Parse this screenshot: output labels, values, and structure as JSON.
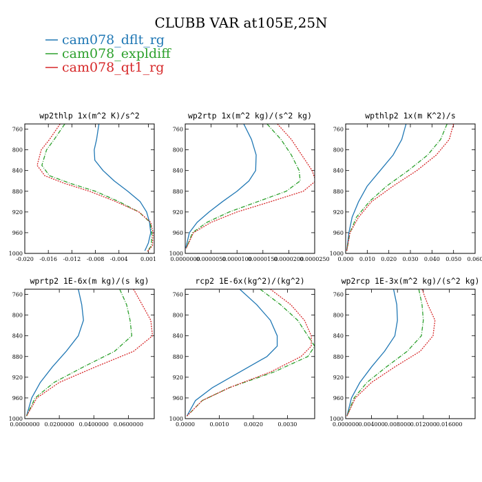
{
  "title": "CLUBB VAR at105E,25N",
  "legend": [
    {
      "name": "cam078_dflt_rg",
      "color": "#1f77b4",
      "dash": ""
    },
    {
      "name": "cam078_expldiff",
      "color": "#2ca02c",
      "dash": "6,2,1,2"
    },
    {
      "name": "cam078_qt1_rg",
      "color": "#d62728",
      "dash": "2,1.5"
    }
  ],
  "chart_data": [
    {
      "type": "line",
      "title": "wp2thlp  1x(m^2 K)/s^2",
      "xlim": [
        -0.02,
        0.002
      ],
      "ylim": [
        1000,
        750
      ],
      "xticks": [
        -0.02,
        -0.016,
        -0.012,
        -0.008,
        -0.004,
        0.001
      ],
      "xtick_labels": [
        "-0.020",
        "-0.016",
        "-0.012",
        "-0.008",
        "-0.004",
        "0.001"
      ],
      "yticks": [
        760,
        800,
        840,
        880,
        920,
        960,
        1000
      ],
      "ytick_labels": [
        "760",
        "800",
        "840",
        "880",
        "920",
        "960",
        "1000"
      ],
      "series": [
        {
          "name": "cam078_dflt_rg",
          "x": [
            -0.0074,
            -0.0078,
            -0.0082,
            -0.0081,
            -0.0067,
            -0.0048,
            -0.0025,
            -0.0004,
            0.0007,
            0.0012,
            0.0014,
            0.001,
            0.0004
          ],
          "y": [
            750,
            780,
            800,
            820,
            840,
            860,
            880,
            900,
            920,
            940,
            960,
            980,
            995
          ]
        },
        {
          "name": "cam078_expldiff",
          "x": [
            -0.0132,
            -0.015,
            -0.0163,
            -0.0171,
            -0.0158,
            -0.0122,
            -0.008,
            -0.004,
            -0.0006,
            0.0013,
            0.0016,
            0.0015,
            0.0008
          ],
          "y": [
            750,
            780,
            800,
            830,
            850,
            865,
            880,
            900,
            920,
            940,
            960,
            985,
            997
          ]
        },
        {
          "name": "cam078_qt1_rg",
          "x": [
            -0.014,
            -0.0158,
            -0.0172,
            -0.0179,
            -0.0166,
            -0.0132,
            -0.009,
            -0.0045,
            -0.0006,
            0.0014,
            0.0018,
            0.0017,
            0.0008
          ],
          "y": [
            750,
            780,
            800,
            830,
            850,
            865,
            880,
            900,
            920,
            940,
            960,
            985,
            997
          ]
        }
      ]
    },
    {
      "type": "line",
      "title": "wp2rtp  1x(m^2 kg)/(s^2 kg)",
      "xlim": [
        0,
        2.5e-05
      ],
      "ylim": [
        1000,
        750
      ],
      "xticks": [
        0,
        5e-06,
        1e-05,
        1.5e-05,
        2e-05,
        2.5e-05
      ],
      "xtick_labels": [
        "0.0000000",
        "0.0000050",
        "0.0000100",
        "0.0000150",
        "0.0000200",
        "0.0000250"
      ],
      "yticks": [
        760,
        800,
        840,
        880,
        920,
        960,
        1000
      ],
      "ytick_labels": [
        "760",
        "800",
        "840",
        "880",
        "920",
        "960",
        "1000"
      ],
      "series": [
        {
          "name": "cam078_dflt_rg",
          "x": [
            1.13e-05,
            1.28e-05,
            1.37e-05,
            1.36e-05,
            1.23e-05,
            1e-05,
            7.2e-06,
            4.6e-06,
            2.3e-06,
            8e-07,
            1e-07
          ],
          "y": [
            750,
            780,
            810,
            840,
            860,
            880,
            900,
            920,
            940,
            960,
            990
          ]
        },
        {
          "name": "cam078_expldiff",
          "x": [
            1.58e-05,
            1.85e-05,
            2.05e-05,
            2.2e-05,
            2.22e-05,
            1.95e-05,
            1.4e-05,
            8.5e-06,
            4.2e-06,
            1.4e-06,
            2e-07
          ],
          "y": [
            750,
            780,
            810,
            840,
            860,
            880,
            900,
            920,
            940,
            960,
            990
          ]
        },
        {
          "name": "cam078_qt1_rg",
          "x": [
            1.78e-05,
            2.05e-05,
            2.25e-05,
            2.45e-05,
            2.52e-05,
            2.28e-05,
            1.65e-05,
            1e-05,
            5e-06,
            1.6e-06,
            2e-07
          ],
          "y": [
            750,
            780,
            810,
            840,
            860,
            880,
            900,
            920,
            940,
            960,
            990
          ]
        }
      ]
    },
    {
      "type": "line",
      "title": "wpthlp2  1x(m K^2)/s",
      "xlim": [
        0,
        0.06
      ],
      "ylim": [
        1000,
        750
      ],
      "xticks": [
        0,
        0.01,
        0.02,
        0.03,
        0.04,
        0.05,
        0.06
      ],
      "xtick_labels": [
        "0.000",
        "0.010",
        "0.020",
        "0.030",
        "0.040",
        "0.050",
        "0.060"
      ],
      "yticks": [
        760,
        800,
        840,
        880,
        920,
        960,
        1000
      ],
      "ytick_labels": [
        "760",
        "800",
        "840",
        "880",
        "920",
        "960",
        "1000"
      ],
      "series": [
        {
          "name": "cam078_dflt_rg",
          "x": [
            0.028,
            0.026,
            0.022,
            0.016,
            0.01,
            0.006,
            0.003,
            0.0015,
            0.0005
          ],
          "y": [
            750,
            780,
            810,
            840,
            870,
            900,
            930,
            960,
            995
          ]
        },
        {
          "name": "cam078_expldiff",
          "x": [
            0.047,
            0.044,
            0.038,
            0.029,
            0.019,
            0.011,
            0.005,
            0.002,
            0.0005
          ],
          "y": [
            750,
            780,
            810,
            840,
            870,
            900,
            930,
            960,
            995
          ]
        },
        {
          "name": "cam078_qt1_rg",
          "x": [
            0.05,
            0.048,
            0.042,
            0.033,
            0.022,
            0.012,
            0.006,
            0.002,
            0.0005
          ],
          "y": [
            750,
            780,
            810,
            840,
            870,
            900,
            930,
            960,
            995
          ]
        }
      ]
    },
    {
      "type": "line",
      "title": "wprtp2  1E-6x(m kg)/(s kg)",
      "xlim": [
        0,
        0.075
      ],
      "ylim": [
        1000,
        750
      ],
      "xticks": [
        0,
        0.02,
        0.04,
        0.06
      ],
      "xtick_labels": [
        "0.0000000",
        "0.0200000",
        "0.0400000",
        "0.0600000"
      ],
      "yticks": [
        760,
        800,
        840,
        880,
        920,
        960,
        1000
      ],
      "ytick_labels": [
        "760",
        "800",
        "840",
        "880",
        "920",
        "960",
        "1000"
      ],
      "series": [
        {
          "name": "cam078_dflt_rg",
          "x": [
            0.031,
            0.033,
            0.034,
            0.031,
            0.024,
            0.016,
            0.009,
            0.004,
            0.001
          ],
          "y": [
            750,
            780,
            810,
            840,
            870,
            900,
            930,
            960,
            995
          ]
        },
        {
          "name": "cam078_expldiff",
          "x": [
            0.055,
            0.059,
            0.061,
            0.062,
            0.052,
            0.034,
            0.017,
            0.006,
            0.001
          ],
          "y": [
            750,
            780,
            810,
            840,
            870,
            900,
            930,
            960,
            995
          ]
        },
        {
          "name": "cam078_qt1_rg",
          "x": [
            0.063,
            0.068,
            0.073,
            0.074,
            0.063,
            0.041,
            0.02,
            0.007,
            0.001
          ],
          "y": [
            750,
            780,
            810,
            840,
            870,
            900,
            930,
            960,
            995
          ]
        }
      ]
    },
    {
      "type": "line",
      "title": "rcp2  1E-6x(kg^2)/(kg^2)",
      "xlim": [
        0,
        0.0038
      ],
      "ylim": [
        1000,
        750
      ],
      "xticks": [
        0,
        0.001,
        0.002,
        0.003
      ],
      "xtick_labels": [
        "0.0000",
        "0.0010",
        "0.0020",
        "0.0030"
      ],
      "yticks": [
        760,
        800,
        840,
        880,
        920,
        960,
        1000
      ],
      "ytick_labels": [
        "760",
        "800",
        "840",
        "880",
        "920",
        "960",
        "1000"
      ],
      "series": [
        {
          "name": "cam078_dflt_rg",
          "x": [
            0.0016,
            0.0021,
            0.0025,
            0.0027,
            0.0027,
            0.0024,
            0.0016,
            0.0008,
            0.0003,
            5e-05
          ],
          "y": [
            750,
            780,
            810,
            840,
            860,
            880,
            910,
            940,
            965,
            995
          ]
        },
        {
          "name": "cam078_expldiff",
          "x": [
            0.0022,
            0.0028,
            0.0033,
            0.0036,
            0.0038,
            0.0036,
            0.0026,
            0.0013,
            0.0005,
            5e-05
          ],
          "y": [
            750,
            780,
            810,
            840,
            860,
            880,
            910,
            940,
            965,
            995
          ]
        },
        {
          "name": "cam078_qt1_rg",
          "x": [
            0.0025,
            0.0031,
            0.0035,
            0.0037,
            0.0037,
            0.0034,
            0.0025,
            0.0013,
            0.0005,
            5e-05
          ],
          "y": [
            750,
            780,
            810,
            840,
            860,
            880,
            910,
            940,
            965,
            995
          ]
        }
      ]
    },
    {
      "type": "line",
      "title": "wp2rcp  1E-3x(m^2 kg)/(s^2 kg)",
      "xlim": [
        0,
        0.02
      ],
      "ylim": [
        1000,
        750
      ],
      "xticks": [
        0,
        0.004,
        0.008,
        0.012,
        0.016
      ],
      "xtick_labels": [
        "0.000000",
        "0.004000",
        "0.008000",
        "0.012000",
        "0.016000"
      ],
      "yticks": [
        760,
        800,
        840,
        880,
        920,
        960,
        1000
      ],
      "ytick_labels": [
        "760",
        "800",
        "840",
        "880",
        "920",
        "960",
        "1000"
      ],
      "series": [
        {
          "name": "cam078_dflt_rg",
          "x": [
            0.0074,
            0.0079,
            0.008,
            0.0076,
            0.006,
            0.004,
            0.0022,
            0.0009,
            0.0002
          ],
          "y": [
            750,
            780,
            810,
            840,
            870,
            900,
            930,
            960,
            995
          ]
        },
        {
          "name": "cam078_expldiff",
          "x": [
            0.0113,
            0.0118,
            0.012,
            0.0117,
            0.0095,
            0.0063,
            0.0033,
            0.0013,
            0.0002
          ],
          "y": [
            750,
            780,
            810,
            840,
            870,
            900,
            930,
            960,
            995
          ]
        },
        {
          "name": "cam078_qt1_rg",
          "x": [
            0.0118,
            0.0127,
            0.0138,
            0.0135,
            0.0115,
            0.0076,
            0.004,
            0.0015,
            0.0002
          ],
          "y": [
            750,
            780,
            810,
            840,
            870,
            900,
            930,
            960,
            995
          ]
        }
      ]
    }
  ]
}
